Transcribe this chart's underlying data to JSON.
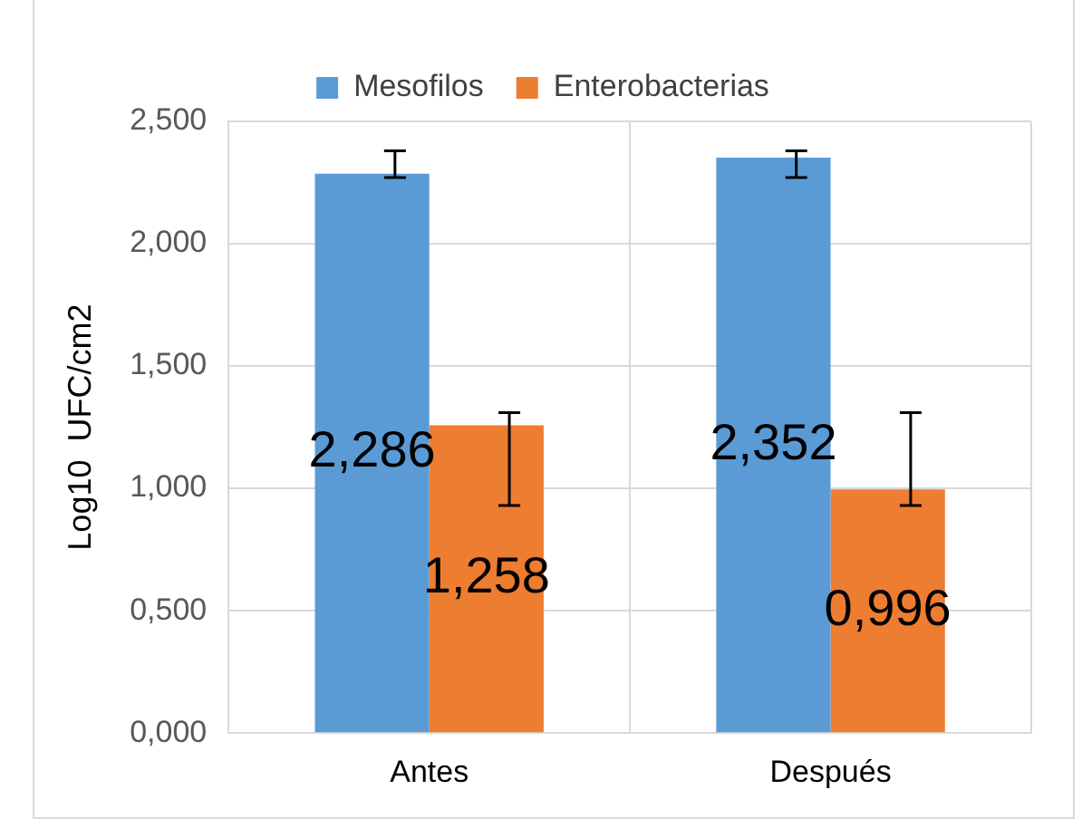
{
  "chart_data": {
    "type": "bar",
    "ylabel": "Log10  UFC/cm2",
    "categories": [
      "Antes",
      "Después"
    ],
    "series": [
      {
        "name": "Mesofilos",
        "color": "#5b9bd5",
        "values": [
          2.286,
          2.352
        ],
        "value_labels": [
          "2,286",
          "2,352"
        ],
        "errors": [
          [
            2.27,
            2.38
          ],
          [
            2.27,
            2.38
          ]
        ]
      },
      {
        "name": "Enterobacterias",
        "color": "#ed7d31",
        "values": [
          1.258,
          0.996
        ],
        "value_labels": [
          "1,258",
          "0,996"
        ],
        "errors": [
          [
            0.93,
            1.31
          ],
          [
            0.93,
            1.31
          ]
        ]
      }
    ],
    "ylim": [
      0,
      2.5
    ],
    "yticks": [
      {
        "value": 0,
        "label": "0,000"
      },
      {
        "value": 0.5,
        "label": "0,500"
      },
      {
        "value": 1,
        "label": "1,000"
      },
      {
        "value": 1.5,
        "label": "1,500"
      },
      {
        "value": 2,
        "label": "2,000"
      },
      {
        "value": 2.5,
        "label": "2,500"
      }
    ],
    "grid": true,
    "legend": "top"
  }
}
